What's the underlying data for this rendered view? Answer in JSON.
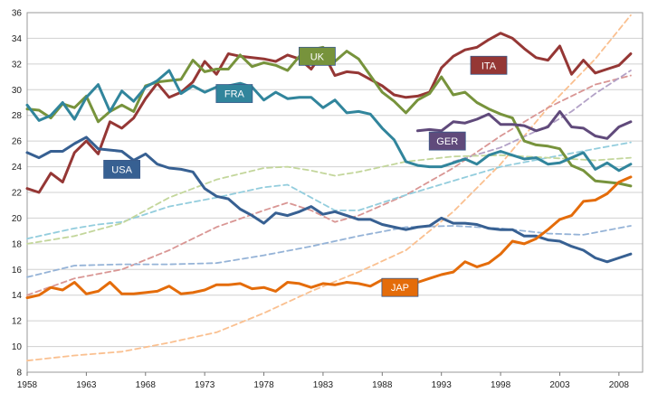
{
  "chart_data": {
    "type": "line",
    "title": "",
    "xlabel": "",
    "ylabel": "",
    "xlim": [
      1958,
      2010
    ],
    "ylim": [
      8,
      36
    ],
    "grid": true,
    "legend": "inline labels",
    "x_ticks": [
      1958,
      1963,
      1968,
      1973,
      1978,
      1983,
      1988,
      1993,
      1998,
      2003,
      2008
    ],
    "y_ticks": [
      8,
      10,
      12,
      14,
      16,
      18,
      20,
      22,
      24,
      26,
      28,
      30,
      32,
      34,
      36
    ],
    "labels": [
      {
        "text": "UK",
        "series": "UK",
        "color": "#77933C",
        "at": [
          1982.5,
          32.6
        ]
      },
      {
        "text": "ITA",
        "series": "ITA",
        "color": "#953735",
        "at": [
          1997,
          31.9
        ]
      },
      {
        "text": "FRA",
        "series": "FRA",
        "color": "#31859C",
        "at": [
          1975.5,
          29.7
        ]
      },
      {
        "text": "GER",
        "series": "GER",
        "color": "#604A7B",
        "at": [
          1993.5,
          26.0
        ]
      },
      {
        "text": "USA",
        "series": "USA",
        "color": "#376092",
        "at": [
          1966,
          23.8
        ]
      },
      {
        "text": "JAP",
        "series": "JAP",
        "color": "#E46C0A",
        "at": [
          1989.5,
          14.6
        ]
      }
    ],
    "series": [
      {
        "name": "ITA",
        "color": "#953735",
        "style": "solid",
        "x": [
          1958,
          1959,
          1960,
          1961,
          1962,
          1963,
          1964,
          1965,
          1966,
          1967,
          1968,
          1969,
          1970,
          1971,
          1972,
          1973,
          1974,
          1975,
          1976,
          1977,
          1978,
          1979,
          1980,
          1981,
          1982,
          1983,
          1984,
          1985,
          1986,
          1987,
          1988,
          1989,
          1990,
          1991,
          1992,
          1993,
          1994,
          1995,
          1996,
          1997,
          1998,
          1999,
          2000,
          2001,
          2002,
          2003,
          2004,
          2005,
          2006,
          2007,
          2008,
          2009
        ],
        "y": [
          22.3,
          22.0,
          23.5,
          22.8,
          25.1,
          26.0,
          25.0,
          27.5,
          27.0,
          27.8,
          29.3,
          30.5,
          29.4,
          29.8,
          30.6,
          32.2,
          31.2,
          32.8,
          32.6,
          32.5,
          32.4,
          32.2,
          32.7,
          32.4,
          31.6,
          32.9,
          31.1,
          31.4,
          31.3,
          30.8,
          30.3,
          29.6,
          29.4,
          29.5,
          29.8,
          31.7,
          32.6,
          33.1,
          33.3,
          33.9,
          34.4,
          34.0,
          33.2,
          32.5,
          32.3,
          33.4,
          31.2,
          32.3,
          31.3,
          31.6,
          31.9,
          32.8
        ]
      },
      {
        "name": "UK",
        "color": "#77933C",
        "style": "solid",
        "x": [
          1958,
          1959,
          1960,
          1961,
          1962,
          1963,
          1964,
          1965,
          1966,
          1967,
          1968,
          1969,
          1970,
          1971,
          1972,
          1973,
          1974,
          1975,
          1976,
          1977,
          1978,
          1979,
          1980,
          1981,
          1982,
          1983,
          1984,
          1985,
          1986,
          1987,
          1988,
          1989,
          1990,
          1991,
          1992,
          1993,
          1994,
          1995,
          1996,
          1997,
          1998,
          1999,
          2000,
          2001,
          2002,
          2003,
          2004,
          2005,
          2006,
          2007,
          2008,
          2009
        ],
        "y": [
          28.5,
          28.4,
          27.8,
          28.9,
          28.6,
          29.5,
          27.5,
          28.3,
          28.8,
          28.3,
          30.3,
          30.6,
          30.7,
          30.8,
          32.3,
          31.4,
          31.6,
          31.6,
          32.7,
          31.8,
          32.1,
          31.9,
          31.5,
          32.6,
          33.1,
          33.3,
          32.2,
          33.0,
          32.4,
          31.1,
          29.8,
          29.1,
          28.2,
          29.2,
          29.7,
          31.0,
          29.6,
          29.8,
          29.0,
          28.5,
          28.1,
          27.8,
          26.0,
          25.7,
          25.6,
          25.4,
          24.1,
          23.7,
          22.9,
          22.8,
          22.7,
          22.5
        ]
      },
      {
        "name": "FRA",
        "color": "#31859C",
        "style": "solid",
        "x": [
          1958,
          1959,
          1960,
          1961,
          1962,
          1963,
          1964,
          1965,
          1966,
          1967,
          1968,
          1969,
          1970,
          1971,
          1972,
          1973,
          1974,
          1975,
          1976,
          1977,
          1978,
          1979,
          1980,
          1981,
          1982,
          1983,
          1984,
          1985,
          1986,
          1987,
          1988,
          1989,
          1990,
          1991,
          1992,
          1993,
          1994,
          1995,
          1996,
          1997,
          1998,
          1999,
          2000,
          2001,
          2002,
          2003,
          2004,
          2005,
          2006,
          2007,
          2008,
          2009
        ],
        "y": [
          28.8,
          27.6,
          28.0,
          29.0,
          27.7,
          29.4,
          30.4,
          28.3,
          29.9,
          29.1,
          30.2,
          30.7,
          31.5,
          29.7,
          30.3,
          29.8,
          30.2,
          30.3,
          30.5,
          30.2,
          29.2,
          29.8,
          29.3,
          29.4,
          29.4,
          28.6,
          29.2,
          28.2,
          28.3,
          28.1,
          27.0,
          26.1,
          24.4,
          24.1,
          24.0,
          24.0,
          24.3,
          24.6,
          24.2,
          24.9,
          25.2,
          24.9,
          24.6,
          24.7,
          24.2,
          24.3,
          24.7,
          25.1,
          23.8,
          24.3,
          23.7,
          24.2
        ]
      },
      {
        "name": "GER",
        "color": "#604A7B",
        "style": "solid",
        "x": [
          1991,
          1992,
          1993,
          1994,
          1995,
          1996,
          1997,
          1998,
          1999,
          2000,
          2001,
          2002,
          2003,
          2004,
          2005,
          2006,
          2007,
          2008,
          2009
        ],
        "y": [
          26.8,
          26.9,
          26.8,
          27.5,
          27.4,
          27.7,
          28.1,
          27.3,
          27.3,
          27.2,
          26.8,
          27.1,
          28.3,
          27.1,
          27.0,
          26.4,
          26.2,
          27.1,
          27.5
        ]
      },
      {
        "name": "USA",
        "color": "#376092",
        "style": "solid",
        "x": [
          1958,
          1959,
          1960,
          1961,
          1962,
          1963,
          1964,
          1965,
          1966,
          1967,
          1968,
          1969,
          1970,
          1971,
          1972,
          1973,
          1974,
          1975,
          1976,
          1977,
          1978,
          1979,
          1980,
          1981,
          1982,
          1983,
          1984,
          1985,
          1986,
          1987,
          1988,
          1989,
          1990,
          1991,
          1992,
          1993,
          1994,
          1995,
          1996,
          1997,
          1998,
          1999,
          2000,
          2001,
          2002,
          2003,
          2004,
          2005,
          2006,
          2007,
          2008,
          2009
        ],
        "y": [
          25.1,
          24.7,
          25.2,
          25.2,
          25.8,
          26.3,
          25.4,
          25.3,
          25.2,
          24.5,
          25.0,
          24.2,
          23.9,
          23.8,
          23.6,
          22.3,
          21.7,
          21.5,
          20.7,
          20.2,
          19.6,
          20.4,
          20.2,
          20.5,
          20.9,
          20.3,
          20.5,
          20.2,
          19.9,
          19.9,
          19.5,
          19.3,
          19.1,
          19.3,
          19.4,
          20.0,
          19.6,
          19.6,
          19.5,
          19.2,
          19.1,
          19.1,
          18.6,
          18.6,
          18.3,
          18.2,
          17.8,
          17.5,
          16.9,
          16.6,
          16.9,
          17.2
        ]
      },
      {
        "name": "JAP",
        "color": "#E46C0A",
        "style": "solid",
        "x": [
          1958,
          1959,
          1960,
          1961,
          1962,
          1963,
          1964,
          1965,
          1966,
          1967,
          1968,
          1969,
          1970,
          1971,
          1972,
          1973,
          1974,
          1975,
          1976,
          1977,
          1978,
          1979,
          1980,
          1981,
          1982,
          1983,
          1984,
          1985,
          1986,
          1987,
          1988,
          1989,
          1990,
          1991,
          1992,
          1993,
          1994,
          1995,
          1996,
          1997,
          1998,
          1999,
          2000,
          2001,
          2002,
          2003,
          2004,
          2005,
          2006,
          2007,
          2008,
          2009
        ],
        "y": [
          13.8,
          14.0,
          14.6,
          14.4,
          15.0,
          14.1,
          14.3,
          15.0,
          14.1,
          14.1,
          14.2,
          14.3,
          14.7,
          14.1,
          14.2,
          14.4,
          14.8,
          14.8,
          14.9,
          14.5,
          14.6,
          14.3,
          15.0,
          14.9,
          14.6,
          14.9,
          14.8,
          15.0,
          14.9,
          14.7,
          15.2,
          14.9,
          15.1,
          15.0,
          15.3,
          15.6,
          15.8,
          16.6,
          16.2,
          16.5,
          17.2,
          18.2,
          18.0,
          18.4,
          19.1,
          19.9,
          20.2,
          21.3,
          21.4,
          21.9,
          22.8,
          23.2
        ]
      },
      {
        "name": "",
        "color": "#FAC090",
        "style": "dashed",
        "x": [
          1958,
          1962,
          1966,
          1970,
          1974,
          1978,
          1982,
          1986,
          1990,
          1994,
          1998,
          2002,
          2006,
          2009
        ],
        "y": [
          8.9,
          9.3,
          9.6,
          10.3,
          11.1,
          12.6,
          14.3,
          15.8,
          17.5,
          20.5,
          24.2,
          28.6,
          32.4,
          35.8
        ]
      },
      {
        "name": "",
        "color": "#D99694",
        "style": "dashed",
        "x": [
          1958,
          1962,
          1966,
          1970,
          1974,
          1978,
          1980,
          1982,
          1984,
          1986,
          1990,
          1994,
          1998,
          2002,
          2006,
          2009
        ],
        "y": [
          14.0,
          15.3,
          16.0,
          17.5,
          19.3,
          20.6,
          21.2,
          20.6,
          19.7,
          20.2,
          21.8,
          23.9,
          26.4,
          28.6,
          30.4,
          31.1
        ]
      },
      {
        "name": "",
        "color": "#B3A2C7",
        "style": "dashed",
        "x": [
          1994,
          1998,
          2002,
          2004,
          2006,
          2009
        ],
        "y": [
          24.4,
          25.5,
          27.2,
          28.3,
          29.7,
          31.5
        ]
      },
      {
        "name": "",
        "color": "#93CDDD",
        "style": "dashed",
        "x": [
          1958,
          1962,
          1964,
          1966,
          1970,
          1974,
          1978,
          1980,
          1982,
          1984,
          1986,
          1990,
          1994,
          1998,
          2002,
          2006,
          2009
        ],
        "y": [
          18.4,
          19.2,
          19.5,
          19.7,
          20.9,
          21.6,
          22.4,
          22.6,
          21.6,
          20.6,
          20.6,
          21.8,
          22.9,
          24.0,
          24.7,
          25.4,
          25.9
        ]
      },
      {
        "name": "",
        "color": "#C3D69B",
        "style": "dashed",
        "x": [
          1958,
          1962,
          1966,
          1970,
          1974,
          1978,
          1980,
          1982,
          1984,
          1986,
          1990,
          1994,
          1998,
          2002,
          2006,
          2009
        ],
        "y": [
          18.0,
          18.6,
          19.6,
          21.6,
          23.0,
          23.9,
          24.0,
          23.7,
          23.3,
          23.6,
          24.4,
          24.8,
          24.9,
          24.7,
          24.5,
          24.7
        ]
      },
      {
        "name": "",
        "color": "#95B3D7",
        "style": "dashed",
        "x": [
          1958,
          1962,
          1966,
          1970,
          1974,
          1978,
          1982,
          1986,
          1990,
          1994,
          1998,
          2002,
          2005,
          2009
        ],
        "y": [
          15.4,
          16.3,
          16.4,
          16.4,
          16.5,
          17.1,
          17.8,
          18.6,
          19.3,
          19.4,
          19.2,
          18.8,
          18.7,
          19.4
        ]
      }
    ]
  }
}
